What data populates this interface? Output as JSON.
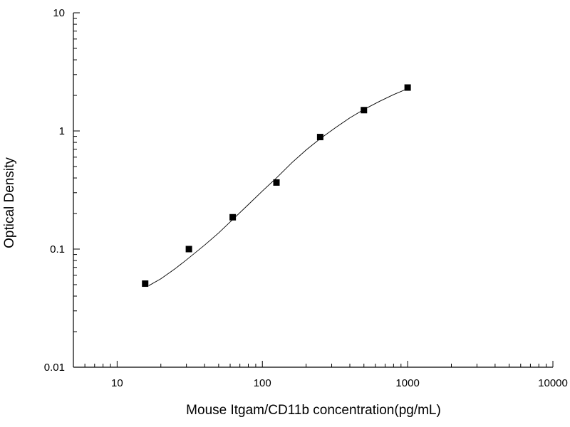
{
  "chart_data": {
    "type": "scatter",
    "title": "",
    "xlabel": "Mouse Itgam/CD11b concentration(pg/mL)",
    "ylabel": "Optical Density",
    "x_scale": "log",
    "y_scale": "log",
    "xlim": [
      5,
      10000
    ],
    "ylim": [
      0.01,
      10
    ],
    "x_ticks": [
      10,
      100,
      1000,
      10000
    ],
    "x_tick_labels": [
      "10",
      "100",
      "1000",
      "10000"
    ],
    "y_ticks": [
      0.01,
      0.1,
      1,
      10
    ],
    "y_tick_labels": [
      "0.01",
      "0.1",
      "1",
      "10"
    ],
    "grid": false,
    "legend": "none",
    "series": [
      {
        "marker": "square",
        "color": "#000000",
        "x": [
          15.6,
          31.2,
          62.5,
          125,
          250,
          500,
          1000
        ],
        "y": [
          0.051,
          0.1,
          0.186,
          0.366,
          0.888,
          1.5,
          2.33
        ]
      }
    ],
    "fit_curve": {
      "color": "#000000",
      "x": [
        16.5,
        20,
        25,
        30,
        40,
        50,
        62.5,
        80,
        100,
        125,
        160,
        200,
        250,
        320,
        400,
        500,
        640,
        800,
        1000
      ],
      "y": [
        0.049,
        0.056,
        0.068,
        0.081,
        0.108,
        0.137,
        0.178,
        0.238,
        0.31,
        0.4,
        0.54,
        0.69,
        0.86,
        1.07,
        1.29,
        1.52,
        1.78,
        2.03,
        2.28
      ]
    }
  }
}
